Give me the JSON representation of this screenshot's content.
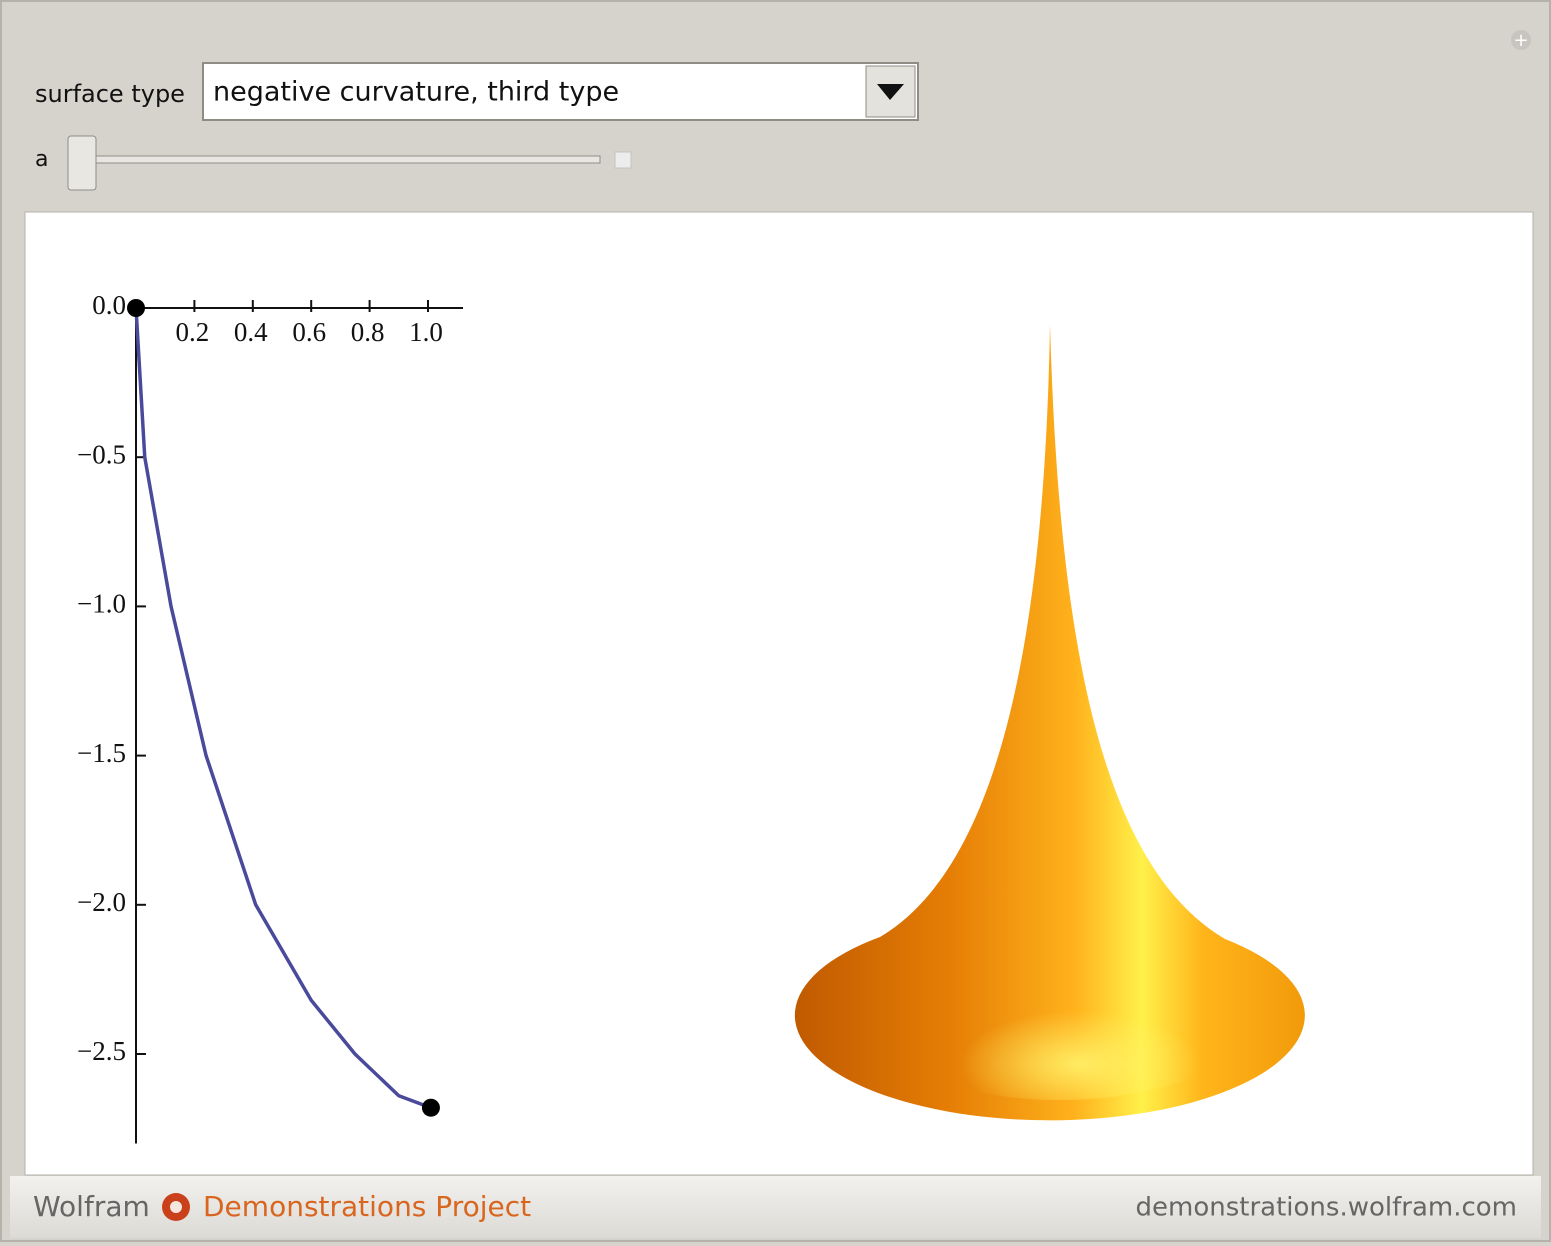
{
  "controls": {
    "surface_type_label": "surface type",
    "surface_type_value": "negative curvature, third type",
    "slider_label": "a"
  },
  "chart_data": {
    "type": "line",
    "x": [
      0,
      0.03,
      0.12,
      0.24,
      0.41,
      0.6,
      0.75,
      0.9,
      1.01
    ],
    "series": [
      {
        "color": "#4a4a9c",
        "values": [
          0,
          -0.5,
          -1.0,
          -1.5,
          -2.0,
          -2.32,
          -2.5,
          -2.64,
          -2.68
        ]
      }
    ],
    "xlim": [
      0,
      1.12
    ],
    "ylim": [
      -2.8,
      0
    ],
    "xticks": [
      0.2,
      0.4,
      0.6,
      0.8,
      {
        "value": 1.0,
        "label": "1.0"
      }
    ],
    "yticks": [
      {
        "value": 0,
        "label": "0.0"
      },
      {
        "value": -0.5,
        "label": "−0.5"
      },
      {
        "value": -1.0,
        "label": "−1.0"
      },
      {
        "value": -1.5,
        "label": "−1.5"
      },
      {
        "value": -2.0,
        "label": "−2.0"
      },
      {
        "value": -2.5,
        "label": "−2.5"
      }
    ]
  },
  "footer": {
    "brand": "Wolfram",
    "project": "Demonstrations Project",
    "url": "demonstrations.wolfram.com"
  }
}
